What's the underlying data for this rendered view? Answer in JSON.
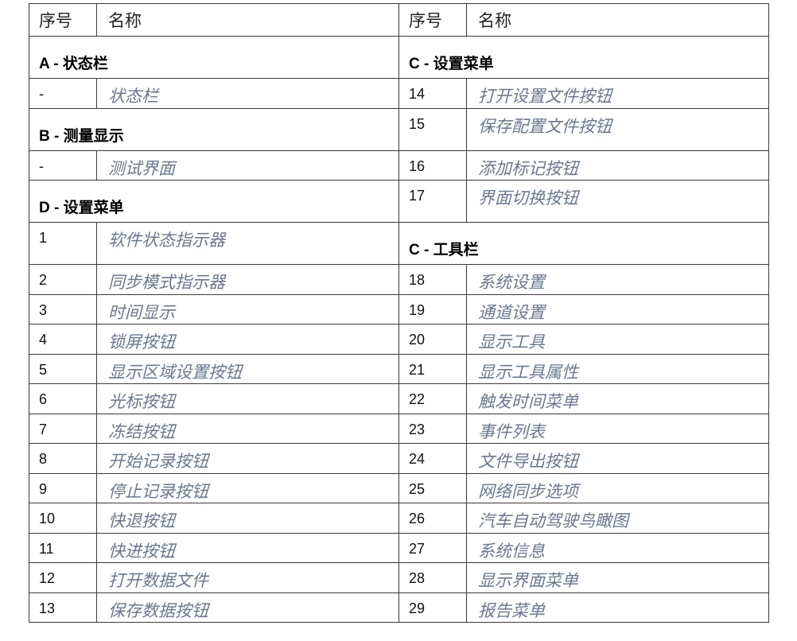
{
  "header": {
    "col_index": "序号",
    "col_name": "名称"
  },
  "left": [
    {
      "type": "heading",
      "text": "A - 状态栏",
      "h": "tall"
    },
    {
      "type": "item",
      "num": "-",
      "name": "状态栏"
    },
    {
      "type": "heading",
      "text": "B - 测量显示",
      "h": "tall"
    },
    {
      "type": "item",
      "num": "-",
      "name": "测试界面"
    },
    {
      "type": "heading",
      "text": "D - 设置菜单",
      "h": "tall"
    },
    {
      "type": "item",
      "num": "1",
      "name": "软件状态指示器",
      "h": "tall"
    },
    {
      "type": "item",
      "num": "2",
      "name": "同步模式指示器"
    },
    {
      "type": "item",
      "num": "3",
      "name": "时间显示"
    },
    {
      "type": "item",
      "num": "4",
      "name": "锁屏按钮"
    },
    {
      "type": "item",
      "num": "5",
      "name": "显示区域设置按钮"
    },
    {
      "type": "item",
      "num": "6",
      "name": "光标按钮"
    },
    {
      "type": "item",
      "num": "7",
      "name": "冻结按钮"
    },
    {
      "type": "item",
      "num": "8",
      "name": "开始记录按钮"
    },
    {
      "type": "item",
      "num": "9",
      "name": "停止记录按钮"
    },
    {
      "type": "item",
      "num": "10",
      "name": "快退按钮"
    },
    {
      "type": "item",
      "num": "11",
      "name": "快进按钮"
    },
    {
      "type": "item",
      "num": "12",
      "name": "打开数据文件"
    },
    {
      "type": "item",
      "num": "13",
      "name": "保存数据按钮"
    }
  ],
  "right": [
    {
      "type": "heading",
      "text": "C - 设置菜单",
      "h": "tall"
    },
    {
      "type": "item",
      "num": "14",
      "name": "打开设置文件按钮"
    },
    {
      "type": "item",
      "num": "15",
      "name": "保存配置文件按钮",
      "h": "tall"
    },
    {
      "type": "item",
      "num": "16",
      "name": "添加标记按钮"
    },
    {
      "type": "item",
      "num": "17",
      "name": "界面切换按钮",
      "h": "tall"
    },
    {
      "type": "heading",
      "text": "C - 工具栏",
      "h": "tall"
    },
    {
      "type": "item",
      "num": "18",
      "name": "系统设置"
    },
    {
      "type": "item",
      "num": "19",
      "name": "通道设置"
    },
    {
      "type": "item",
      "num": "20",
      "name": "显示工具"
    },
    {
      "type": "item",
      "num": "21",
      "name": "显示工具属性"
    },
    {
      "type": "item",
      "num": "22",
      "name": "触发时间菜单"
    },
    {
      "type": "item",
      "num": "23",
      "name": "事件列表"
    },
    {
      "type": "item",
      "num": "24",
      "name": "文件导出按钮"
    },
    {
      "type": "item",
      "num": "25",
      "name": "网络同步选项"
    },
    {
      "type": "item",
      "num": "26",
      "name": "汽车自动驾驶鸟瞰图"
    },
    {
      "type": "item",
      "num": "27",
      "name": "系统信息"
    },
    {
      "type": "item",
      "num": "28",
      "name": "显示界面菜单"
    },
    {
      "type": "item",
      "num": "29",
      "name": "报告菜单"
    }
  ]
}
